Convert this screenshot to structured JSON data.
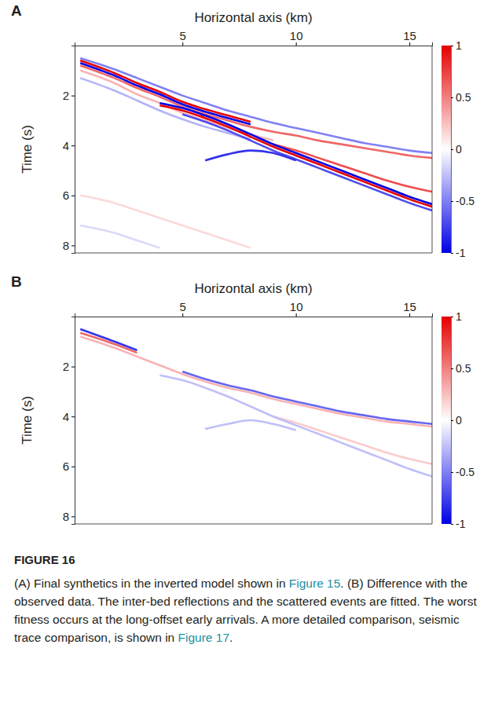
{
  "chart_data": [
    {
      "type": "line",
      "title": "A",
      "x_label": "Horizontal axis (km)",
      "y_label": "Time (s)",
      "x": [
        0.5,
        2,
        3,
        4,
        5,
        6,
        7,
        8,
        9,
        10,
        11,
        12,
        13,
        14,
        15,
        16
      ],
      "xlim": [
        0.25,
        16
      ],
      "xticks": [
        5,
        10,
        15
      ],
      "ylim": [
        0,
        8.3
      ],
      "yticks": [
        2,
        4,
        6,
        8
      ],
      "grid": false,
      "colorbar": {
        "range": [
          -1,
          1
        ],
        "ticks": [
          1,
          0.5,
          0,
          -0.5,
          -1
        ]
      },
      "series": [
        {
          "amplitude": 0.15,
          "values": [
            6.0,
            6.3,
            6.6,
            6.9,
            7.2,
            7.5,
            7.8,
            8.1,
            null,
            null,
            null,
            null,
            null,
            null,
            null,
            null
          ]
        },
        {
          "amplitude": -0.15,
          "values": [
            7.2,
            7.5,
            7.8,
            8.1,
            null,
            null,
            null,
            null,
            null,
            null,
            null,
            null,
            null,
            null,
            null,
            null
          ]
        },
        {
          "amplitude": 0.3,
          "values": [
            1.0,
            1.5,
            1.95,
            2.3,
            2.7,
            3.0,
            3.3,
            3.55,
            3.8,
            null,
            null,
            null,
            null,
            null,
            null,
            null
          ]
        },
        {
          "amplitude": -0.3,
          "values": [
            1.3,
            1.8,
            2.2,
            2.6,
            2.95,
            3.25,
            3.5,
            3.75,
            null,
            null,
            null,
            null,
            null,
            null,
            null,
            null
          ]
        },
        {
          "amplitude": -0.5,
          "values": [
            0.5,
            0.95,
            1.3,
            1.65,
            2.0,
            2.3,
            2.6,
            2.85,
            3.1,
            3.3,
            3.5,
            3.7,
            3.9,
            4.05,
            4.2,
            4.3
          ]
        },
        {
          "amplitude": 0.6,
          "values": [
            0.8,
            1.3,
            1.7,
            2.05,
            2.45,
            2.75,
            3.0,
            3.25,
            3.45,
            3.6,
            3.8,
            3.95,
            4.1,
            4.25,
            4.4,
            4.5
          ]
        },
        {
          "amplitude": 0.7,
          "values": [
            null,
            null,
            null,
            null,
            null,
            null,
            null,
            null,
            3.95,
            4.2,
            4.5,
            4.8,
            5.1,
            5.4,
            5.65,
            5.85
          ]
        },
        {
          "amplitude": -0.7,
          "values": [
            null,
            null,
            null,
            null,
            2.75,
            3.05,
            3.4,
            3.8,
            4.2,
            4.55,
            4.9,
            5.25,
            5.6,
            5.95,
            6.3,
            6.6
          ]
        },
        {
          "amplitude": -0.8,
          "values": [
            null,
            null,
            null,
            null,
            null,
            4.6,
            4.35,
            4.2,
            4.3,
            4.6,
            null,
            null,
            null,
            null,
            null,
            null
          ]
        },
        {
          "amplitude": -1,
          "values": [
            null,
            null,
            null,
            2.3,
            2.5,
            2.8,
            3.15,
            3.55,
            3.95,
            4.3,
            4.65,
            5.0,
            5.35,
            5.7,
            6.05,
            6.35
          ]
        },
        {
          "amplitude": 1,
          "values": [
            null,
            null,
            null,
            2.4,
            2.6,
            2.9,
            3.25,
            3.65,
            4.05,
            4.4,
            4.75,
            5.1,
            5.45,
            5.8,
            6.15,
            6.45
          ]
        },
        {
          "amplitude": 1,
          "values": [
            0.6,
            1.1,
            1.5,
            1.85,
            2.25,
            2.55,
            2.8,
            3.05,
            null,
            null,
            null,
            null,
            null,
            null,
            null,
            null
          ]
        },
        {
          "amplitude": -1,
          "values": [
            0.7,
            1.2,
            1.6,
            1.95,
            2.35,
            2.65,
            2.9,
            3.15,
            null,
            null,
            null,
            null,
            null,
            null,
            null,
            null
          ]
        }
      ]
    },
    {
      "type": "line",
      "title": "B",
      "x_label": "Horizontal axis (km)",
      "y_label": "Time (s)",
      "x": [
        0.5,
        2,
        3,
        4,
        5,
        6,
        7,
        8,
        9,
        10,
        11,
        12,
        13,
        14,
        15,
        16
      ],
      "xlim": [
        0.25,
        16
      ],
      "xticks": [
        5,
        10,
        15
      ],
      "ylim": [
        0,
        8.3
      ],
      "yticks": [
        2,
        4,
        6,
        8
      ],
      "grid": false,
      "colorbar": {
        "range": [
          -1,
          1
        ],
        "ticks": [
          1,
          0.5,
          0,
          -0.5,
          -1
        ]
      },
      "series": [
        {
          "amplitude": 0.2,
          "values": [
            null,
            null,
            null,
            null,
            null,
            null,
            null,
            null,
            4.0,
            4.25,
            4.55,
            4.85,
            5.15,
            5.45,
            5.7,
            5.9
          ]
        },
        {
          "amplitude": -0.25,
          "values": [
            null,
            null,
            null,
            null,
            null,
            4.5,
            4.3,
            4.15,
            4.3,
            4.55,
            null,
            null,
            null,
            null,
            null,
            null
          ]
        },
        {
          "amplitude": -0.25,
          "values": [
            null,
            null,
            null,
            2.35,
            2.55,
            2.85,
            3.2,
            3.6,
            4.0,
            4.35,
            4.7,
            5.05,
            5.4,
            5.75,
            6.1,
            6.4
          ]
        },
        {
          "amplitude": 0.3,
          "values": [
            0.8,
            1.25,
            1.6,
            1.95,
            2.3,
            2.6,
            2.85,
            3.05,
            3.3,
            3.5,
            3.7,
            3.9,
            4.05,
            4.2,
            4.3,
            4.4
          ]
        },
        {
          "amplitude": -0.6,
          "values": [
            null,
            null,
            null,
            null,
            2.2,
            2.5,
            2.75,
            2.95,
            3.2,
            3.4,
            3.6,
            3.8,
            3.95,
            4.1,
            4.2,
            4.3
          ]
        },
        {
          "amplitude": 0.6,
          "values": [
            0.65,
            1.1,
            1.45,
            null,
            null,
            null,
            null,
            null,
            null,
            null,
            null,
            null,
            null,
            null,
            null,
            null
          ]
        },
        {
          "amplitude": -0.8,
          "values": [
            0.5,
            1.0,
            1.35,
            null,
            null,
            null,
            null,
            null,
            null,
            null,
            null,
            null,
            null,
            null,
            null,
            null
          ]
        }
      ]
    }
  ],
  "figure": {
    "label": "FIGURE 16",
    "caption": "(A) Final synthetics in the inverted model shown in Figure 15. (B) Difference with the observed data. The inter-bed reflections and the scattered events are fitted. The worst fitness occurs at the long-offset early arrivals. A more detailed comparison, seismic trace comparison, is shown in Figure 17.",
    "caption_links": [
      "Figure 15",
      "Figure 17"
    ]
  }
}
